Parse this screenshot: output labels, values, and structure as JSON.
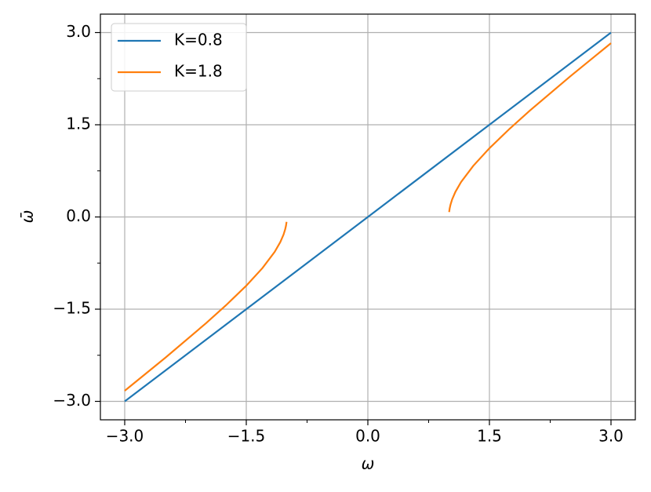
{
  "chart_data": {
    "type": "line",
    "xlabel": "ω",
    "ylabel": "ω̄",
    "xlim": [
      -3.3,
      3.3
    ],
    "ylim": [
      -3.3,
      3.3
    ],
    "xticks": [
      {
        "value": -3,
        "label": "−3.0"
      },
      {
        "value": -1.5,
        "label": "−1.5"
      },
      {
        "value": 0,
        "label": "0.0"
      },
      {
        "value": 1.5,
        "label": "1.5"
      },
      {
        "value": 3,
        "label": "3.0"
      }
    ],
    "yticks": [
      {
        "value": -3,
        "label": "−3.0"
      },
      {
        "value": -1.5,
        "label": "−1.5"
      },
      {
        "value": 0,
        "label": "0.0"
      },
      {
        "value": 1.5,
        "label": "1.5"
      },
      {
        "value": 3,
        "label": "3.0"
      }
    ],
    "xminorticks": [
      -2.25,
      -0.75,
      0.75,
      2.25
    ],
    "yminorticks": [
      -2.25,
      -0.75,
      0.75,
      2.25
    ],
    "grid": true,
    "legend": "upper left",
    "series": [
      {
        "name": "K=0.8",
        "color": "#1f77b4",
        "x": [
          -3,
          3
        ],
        "values": [
          -3,
          3
        ]
      },
      {
        "name": "K=1.8",
        "color": "#ff7f0e",
        "x": [
          -3,
          -2.5,
          -2,
          -1.75,
          -1.5,
          -1.3,
          -1.15,
          -1.08,
          -1.04,
          -1.02,
          -1.01,
          -1.003,
          0,
          1.003,
          1.01,
          1.02,
          1.04,
          1.08,
          1.15,
          1.3,
          1.5,
          1.75,
          2,
          2.5,
          3
        ],
        "values": [
          -2.828,
          -2.291,
          -1.732,
          -1.436,
          -1.118,
          -0.831,
          -0.568,
          -0.408,
          -0.286,
          -0.201,
          -0.142,
          -0.08,
          null,
          0.08,
          0.142,
          0.201,
          0.286,
          0.408,
          0.568,
          0.831,
          1.118,
          1.436,
          1.732,
          2.291,
          2.828
        ]
      }
    ]
  }
}
